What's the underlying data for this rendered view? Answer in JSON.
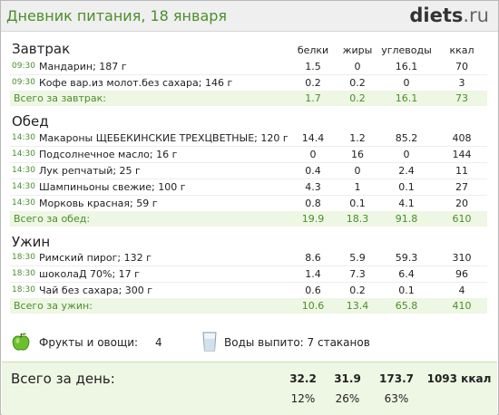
{
  "title": "Дневник питания, 18 января",
  "logo": {
    "main": "diets",
    "suffix": ".ru"
  },
  "columns": {
    "protein": "белки",
    "fat": "жиры",
    "carbs": "углеводы",
    "kcal": "ккал"
  },
  "sections": [
    {
      "title": "Завтрак",
      "items": [
        {
          "time": "09:30",
          "name": "Мандарин; 187 г",
          "protein": "1.5",
          "fat": "0",
          "carbs": "16.1",
          "kcal": "70"
        },
        {
          "time": "09:30",
          "name": "Кофе вар.из молот.без сахара; 146 г",
          "protein": "0.2",
          "fat": "0.2",
          "carbs": "0",
          "kcal": "3"
        }
      ],
      "total": {
        "label": "Всего за завтрак:",
        "protein": "1.7",
        "fat": "0.2",
        "carbs": "16.1",
        "kcal": "73"
      }
    },
    {
      "title": "Обед",
      "items": [
        {
          "time": "14:30",
          "name": "Макароны ЩЕБЕКИНСКИЕ ТРЕХЦВЕТНЫЕ; 120 г",
          "protein": "14.4",
          "fat": "1.2",
          "carbs": "85.2",
          "kcal": "408"
        },
        {
          "time": "14:30",
          "name": "Подсолнечное масло; 16 г",
          "protein": "0",
          "fat": "16",
          "carbs": "0",
          "kcal": "144"
        },
        {
          "time": "14:30",
          "name": "Лук репчатый; 25 г",
          "protein": "0.4",
          "fat": "0",
          "carbs": "2.4",
          "kcal": "11"
        },
        {
          "time": "14:30",
          "name": "Шампиньоны свежие; 100 г",
          "protein": "4.3",
          "fat": "1",
          "carbs": "0.1",
          "kcal": "27"
        },
        {
          "time": "14:30",
          "name": "Морковь красная; 59 г",
          "protein": "0.8",
          "fat": "0.1",
          "carbs": "4.1",
          "kcal": "20"
        }
      ],
      "total": {
        "label": "Всего за обед:",
        "protein": "19.9",
        "fat": "18.3",
        "carbs": "91.8",
        "kcal": "610"
      }
    },
    {
      "title": "Ужин",
      "items": [
        {
          "time": "18:30",
          "name": "Римский пирог; 132 г",
          "protein": "8.6",
          "fat": "5.9",
          "carbs": "59.3",
          "kcal": "310"
        },
        {
          "time": "18:30",
          "name": "шоколаД 70%; 17 г",
          "protein": "1.4",
          "fat": "7.3",
          "carbs": "6.4",
          "kcal": "96"
        },
        {
          "time": "18:30",
          "name": "Чай без сахара; 300 г",
          "protein": "0.6",
          "fat": "0.2",
          "carbs": "0.1",
          "kcal": "4"
        }
      ],
      "total": {
        "label": "Всего за ужин:",
        "protein": "10.6",
        "fat": "13.4",
        "carbs": "65.8",
        "kcal": "410"
      }
    }
  ],
  "extras": {
    "fruits_label": "Фрукты и овощи:",
    "fruits_value": "4",
    "water_label": "Воды выпито: 7 стаканов",
    "icons": {
      "fruits": "apple-icon",
      "water": "water-glass-icon"
    }
  },
  "day_total": {
    "label": "Всего за день:",
    "protein": "32.2",
    "fat": "31.9",
    "carbs": "173.7",
    "kcal": "1093 ккал",
    "protein_pct": "12%",
    "fat_pct": "26%",
    "carbs_pct": "63%"
  },
  "colors": {
    "accent": "#4a8f2b",
    "total_bg": "#eef6e4"
  }
}
